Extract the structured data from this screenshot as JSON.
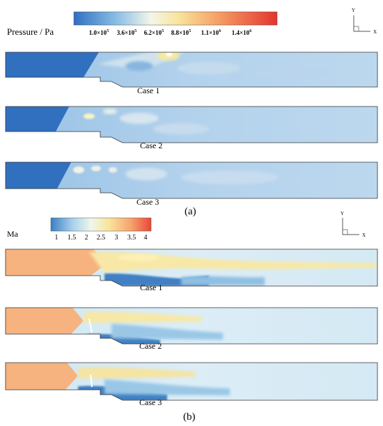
{
  "pressure": {
    "title": "Pressure / Pa",
    "ticks": [
      {
        "base": "1.0×10",
        "exp": "5"
      },
      {
        "base": "3.6×10",
        "exp": "5"
      },
      {
        "base": "6.2×10",
        "exp": "5"
      },
      {
        "base": "8.8×10",
        "exp": "5"
      },
      {
        "base": "1.1×10",
        "exp": "6"
      },
      {
        "base": "1.4×10",
        "exp": "6"
      }
    ],
    "cases": [
      "Case 1",
      "Case 2",
      "Case 3"
    ],
    "panel_label": "(a)"
  },
  "mach": {
    "title": "Ma",
    "ticks": [
      "1",
      "1.5",
      "2",
      "2.5",
      "3",
      "3.5",
      "4"
    ],
    "cases": [
      "Case 1",
      "Case 2",
      "Case 3"
    ],
    "panel_label": "(b)"
  },
  "axes": {
    "y": "Y",
    "x": "X"
  },
  "colors": {
    "pressure_low": "#2f6fc2",
    "pressure_field": "#a9cce9",
    "pressure_high": "#e84436",
    "mach_core": "#f6b07c",
    "mach_field": "#cfe6f3",
    "mach_low": "#3b7fc4"
  }
}
